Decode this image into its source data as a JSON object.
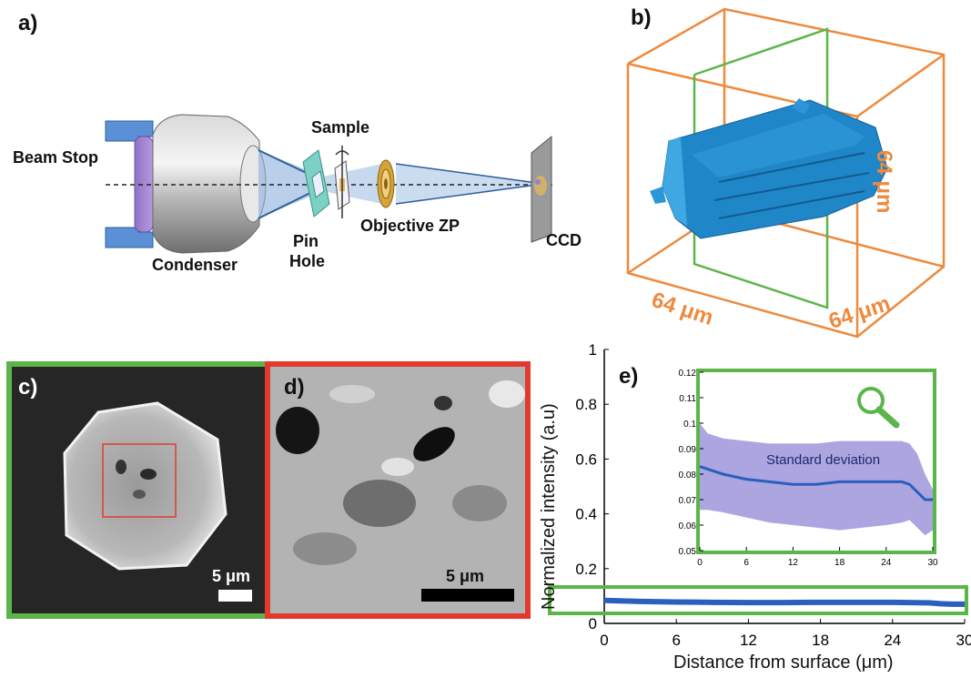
{
  "panels": {
    "a": {
      "label": "a)",
      "labels": {
        "beam_stop": "Beam Stop",
        "condenser": "Condenser",
        "sample": "Sample",
        "pin": "Pin",
        "hole": "Hole",
        "objective": "Objective ZP",
        "ccd": "CCD"
      }
    },
    "b": {
      "label": "b)",
      "dim_right": "64 μm",
      "dim_bottom_left": "64 μm",
      "dim_bottom_right": "64 μm"
    },
    "c": {
      "label": "c)",
      "scale": "5 μm"
    },
    "d": {
      "label": "d)",
      "scale": "5 μm"
    },
    "e": {
      "label": "e)",
      "ylabel": "Normalized intensity (a.u)",
      "xlabel": "Distance from surface (μm)",
      "inset_annotation": "Standard deviation"
    }
  },
  "colors": {
    "green": "#5cb54a",
    "red": "#e23b2e",
    "orange": "#ee8a3d",
    "blue_series": "#2a5fbf",
    "std_band": "#9e95d9",
    "crystal": "#1f86c8"
  },
  "icons": {
    "inset_icon": "magnifier-icon"
  },
  "chart_data": [
    {
      "type": "line",
      "xlabel": "Distance from surface (μm)",
      "ylabel": "Normalized intensity (a.u)",
      "xlim": [
        0,
        30
      ],
      "ylim": [
        0,
        1
      ],
      "xticks": [
        0,
        6,
        12,
        18,
        24,
        30
      ],
      "yticks": [
        0,
        0.2,
        0.4,
        0.6,
        0.8,
        1
      ],
      "ytick_labels": [
        "0",
        "0.2",
        "0.4",
        "0.6",
        "0.8",
        "1"
      ],
      "x": [
        0,
        3,
        6,
        9,
        12,
        15,
        18,
        21,
        24,
        27,
        28,
        29,
        30
      ],
      "series": [
        {
          "values": [
            0.084,
            0.08,
            0.078,
            0.077,
            0.076,
            0.076,
            0.077,
            0.077,
            0.077,
            0.075,
            0.072,
            0.07,
            0.07
          ]
        }
      ]
    },
    {
      "type": "area",
      "inset": true,
      "xlim": [
        0,
        30
      ],
      "ylim": [
        0.05,
        0.12
      ],
      "xticks": [
        0,
        6,
        12,
        18,
        24,
        30
      ],
      "yticks": [
        0.05,
        0.06,
        0.07,
        0.08,
        0.09,
        0.1,
        0.11,
        0.12
      ],
      "ytick_labels": [
        "0.05",
        "0.06",
        "0.07",
        "0.08",
        "0.09",
        "0.1",
        "0.11",
        "0.12"
      ],
      "annotation": "Standard deviation",
      "x": [
        0,
        1,
        3,
        6,
        9,
        12,
        15,
        18,
        21,
        24,
        26,
        27,
        28,
        29,
        30
      ],
      "mean": [
        0.083,
        0.082,
        0.08,
        0.078,
        0.077,
        0.076,
        0.076,
        0.077,
        0.077,
        0.077,
        0.077,
        0.076,
        0.073,
        0.07,
        0.07
      ],
      "upper": [
        0.1,
        0.096,
        0.094,
        0.093,
        0.092,
        0.092,
        0.092,
        0.093,
        0.093,
        0.093,
        0.093,
        0.092,
        0.088,
        0.08,
        0.074
      ],
      "lower": [
        0.066,
        0.066,
        0.065,
        0.063,
        0.061,
        0.06,
        0.059,
        0.058,
        0.059,
        0.06,
        0.061,
        0.062,
        0.059,
        0.056,
        0.058
      ]
    }
  ]
}
